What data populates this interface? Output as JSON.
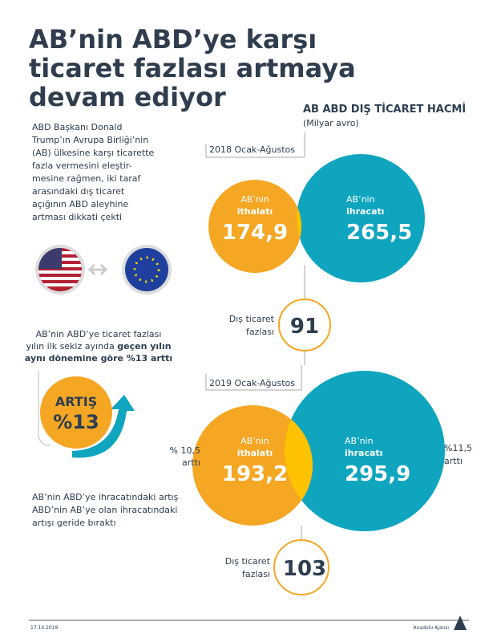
{
  "header": {
    "title_lines": [
      "AB’nin ABD’ye karşı",
      "ticaret fazlası artmaya",
      "devam ediyor"
    ]
  },
  "intro": {
    "lines": [
      "ABD Başkanı Donald",
      "Trump’ın Avrupa Birliği’nin",
      "(AB) ülkesine karşı ticarette",
      "fazla vermesini eleştir-",
      "mesine rağmen, iki taraf",
      "arasındaki dış ticaret",
      "açığının ABD aleyhine",
      "artması dikkati çekti"
    ]
  },
  "section": {
    "title": "AB ABD DIŞ TİCARET HACMİ",
    "unit": "(Milyar avro)"
  },
  "periods": [
    {
      "label": "2018 Ocak-Ağustos",
      "import": {
        "lines": [
          "AB’nin",
          "ithalatı"
        ],
        "value": "174,9"
      },
      "export": {
        "lines": [
          "AB’nin",
          "ihracatı"
        ],
        "value": "265,5"
      },
      "surplus": {
        "lines": [
          "Dış ticaret",
          "fazlası"
        ],
        "value": "91"
      }
    },
    {
      "label": "2019 Ocak-Ağustos",
      "import": {
        "lines": [
          "AB’nin",
          "ithalatı"
        ],
        "value": "193,2",
        "growth": [
          "% 10,5",
          "arttı"
        ]
      },
      "export": {
        "lines": [
          "AB’nin",
          "ihracatı"
        ],
        "value": "295,9",
        "growth": [
          "%11,5",
          "arttı"
        ]
      },
      "surplus": {
        "lines": [
          "Dış ticaret",
          "fazlası"
        ],
        "value": "103"
      }
    }
  ],
  "increase": {
    "note": [
      "AB’nin ABD’ye ticaret fazlası",
      "yılın ilk sekiz ayında ",
      "geçen yılın",
      "aynı dönemine göre %13 arttı"
    ],
    "badge": [
      "ARTIŞ",
      "%13"
    ]
  },
  "conclusion": {
    "lines": [
      "AB’nin ABD’ye ihracatındaki artış",
      "ABD’nin AB’ye olan ihracatındaki",
      "artışı geride bıraktı"
    ]
  },
  "footer": {
    "date": "17.10.2019",
    "source": "Anadolu Ajansı"
  }
}
